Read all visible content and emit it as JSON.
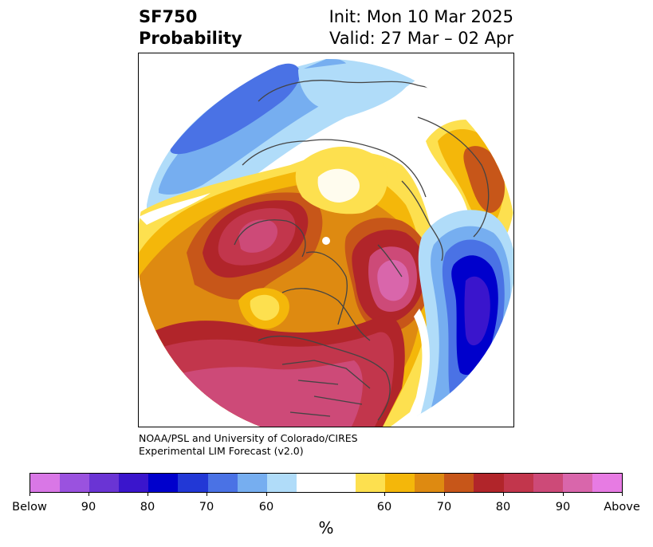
{
  "header": {
    "variable": "SF750",
    "product": "Probability",
    "init": "Init: Mon 10 Mar 2025",
    "valid": "Valid: 27 Mar – 02 Apr"
  },
  "credit": {
    "line1": "NOAA/PSL and University of Colorado/CIRES",
    "line2": "Experimental LIM Forecast (v2.0)"
  },
  "colorbar": {
    "unit": "%",
    "colors": [
      "#d977e6",
      "#9a52df",
      "#6a34d4",
      "#3a15cc",
      "#0000cc",
      "#2238d6",
      "#4a72e5",
      "#76aef0",
      "#b0dcf9",
      "#ffffff",
      "#fde04f",
      "#f4b70a",
      "#de8a11",
      "#c75619",
      "#b1252a",
      "#c2364c",
      "#cd4a78",
      "#d966ab",
      "#e77be3"
    ],
    "labels": [
      "Below",
      "90",
      "80",
      "70",
      "60",
      "60",
      "70",
      "80",
      "90",
      "Above"
    ]
  },
  "map": {
    "legend_colors": {
      "above_high": "#e77be3",
      "above_mid": "#c2364c",
      "above_low": "#fde04f",
      "neutral": "#ffffff",
      "below_low": "#b0dcf9",
      "below_high": "#0000cc"
    }
  }
}
